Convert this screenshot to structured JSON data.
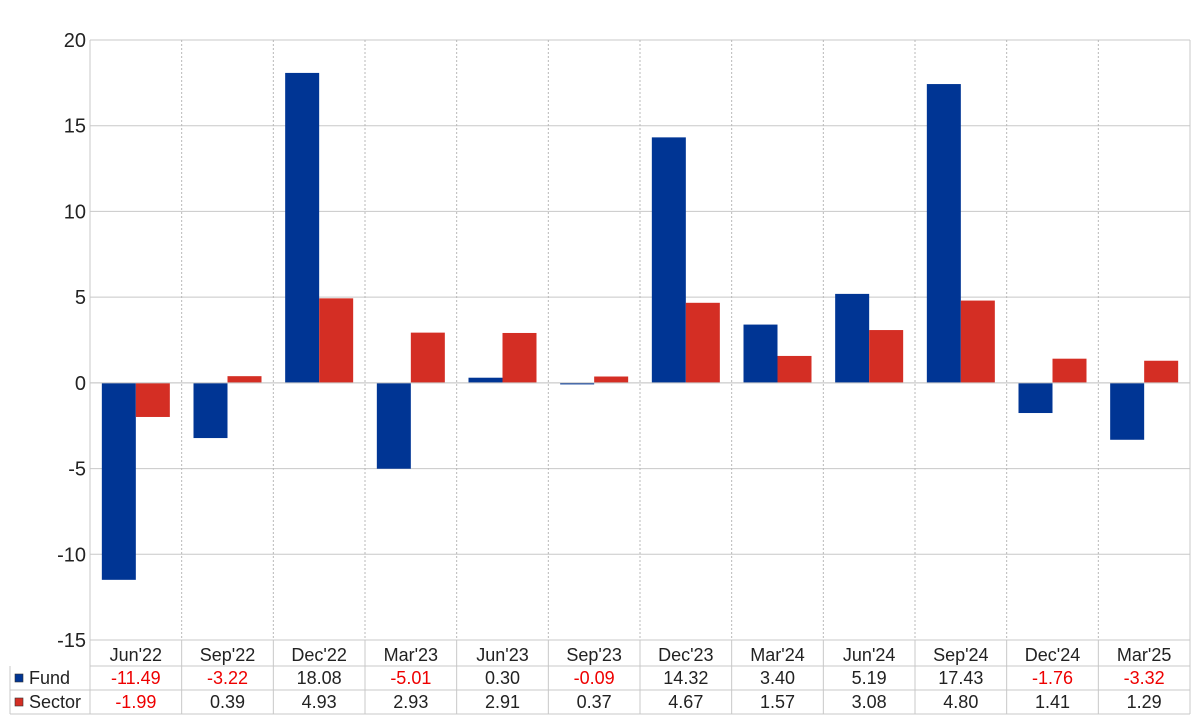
{
  "chart_data": {
    "type": "bar",
    "categories": [
      "Jun'22",
      "Sep'22",
      "Dec'22",
      "Mar'23",
      "Jun'23",
      "Sep'23",
      "Dec'23",
      "Mar'24",
      "Jun'24",
      "Sep'24",
      "Dec'24",
      "Mar'25"
    ],
    "series": [
      {
        "name": "Fund",
        "color": "#003594",
        "values": [
          -11.49,
          -3.22,
          18.08,
          -5.01,
          0.3,
          -0.09,
          14.32,
          3.4,
          5.19,
          17.43,
          -1.76,
          -3.32
        ],
        "labels": [
          "-11.49",
          "-3.22",
          "18.08",
          "-5.01",
          "0.30",
          "-0.09",
          "14.32",
          "3.40",
          "5.19",
          "17.43",
          "-1.76",
          "-3.32"
        ]
      },
      {
        "name": "Sector",
        "color": "#d42e24",
        "values": [
          -1.99,
          0.39,
          4.93,
          2.93,
          2.91,
          0.37,
          4.67,
          1.57,
          3.08,
          4.8,
          1.41,
          1.29
        ],
        "labels": [
          "-1.99",
          "0.39",
          "4.93",
          "2.93",
          "2.91",
          "0.37",
          "4.67",
          "1.57",
          "3.08",
          "4.80",
          "1.41",
          "1.29"
        ]
      }
    ],
    "ylim": [
      -15,
      20
    ],
    "yticks": [
      "20",
      "15",
      "10",
      "5",
      "0",
      "-5",
      "-10",
      "-15"
    ],
    "grid": true,
    "legend": "data-table-left",
    "negative_color": "#ee0000",
    "positive_color": "#222222"
  }
}
